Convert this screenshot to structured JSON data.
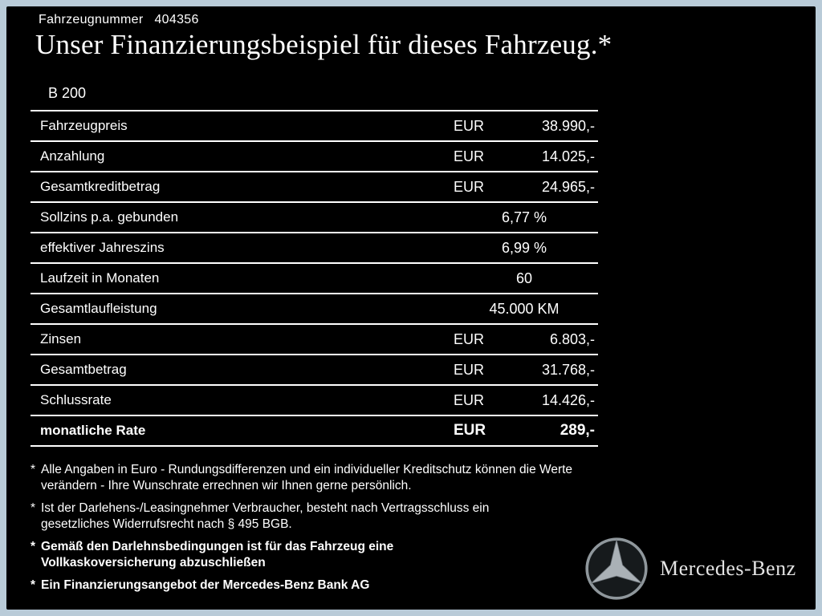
{
  "page": {
    "vehicle_number_label": "Fahrzeugnummer",
    "vehicle_number": "404356",
    "title": "Unser Finanzierungsbeispiel für dieses Fahrzeug.*",
    "model": "B 200"
  },
  "table": {
    "rows": [
      {
        "label": "Fahrzeugpreis",
        "currency": "EUR",
        "value": "38.990,-",
        "bold": false
      },
      {
        "label": "Anzahlung",
        "currency": "EUR",
        "value": "14.025,-",
        "bold": false
      },
      {
        "label": "Gesamtkreditbetrag",
        "currency": "EUR",
        "value": "24.965,-",
        "bold": false
      },
      {
        "label": "Sollzins p.a. gebunden",
        "currency": "",
        "value": "6,77 %",
        "bold": false
      },
      {
        "label": "effektiver Jahreszins",
        "currency": "",
        "value": "6,99 %",
        "bold": false
      },
      {
        "label": "Laufzeit in Monaten",
        "currency": "",
        "value": "60",
        "bold": false
      },
      {
        "label": "Gesamtlaufleistung",
        "currency": "",
        "value": "45.000 KM",
        "bold": false
      },
      {
        "label": "Zinsen",
        "currency": "EUR",
        "value": "6.803,-",
        "bold": false
      },
      {
        "label": "Gesamtbetrag",
        "currency": "EUR",
        "value": "31.768,-",
        "bold": false
      },
      {
        "label": "Schlussrate",
        "currency": "EUR",
        "value": "14.426,-",
        "bold": false
      },
      {
        "label": "monatliche Rate",
        "currency": "EUR",
        "value": "289,-",
        "bold": true
      }
    ]
  },
  "footnotes": [
    {
      "marker": "*",
      "bold": false,
      "text": "Alle Angaben in Euro - Rundungsdifferenzen und ein individueller Kreditschutz können die Werte verändern - Ihre Wunschrate errechnen wir Ihnen gerne persönlich."
    },
    {
      "marker": "*",
      "bold": false,
      "text": "Ist der Darlehens-/Leasingnehmer Verbraucher, besteht nach Vertragsschluss ein gesetzliches Widerrufsrecht nach § 495 BGB."
    },
    {
      "marker": "*",
      "bold": true,
      "text": "Gemäß den Darlehnsbedingungen ist für das Fahrzeug eine Vollkaskoversicherung abzuschließen"
    },
    {
      "marker": "*",
      "bold": true,
      "text": "Ein Finanzierungsangebot der Mercedes-Benz Bank AG"
    }
  ],
  "branding": {
    "logo": "mercedes-star-icon",
    "name": "Mercedes-Benz"
  },
  "colors": {
    "border": "#b9cbd8",
    "background": "#000000",
    "text": "#ffffff"
  }
}
